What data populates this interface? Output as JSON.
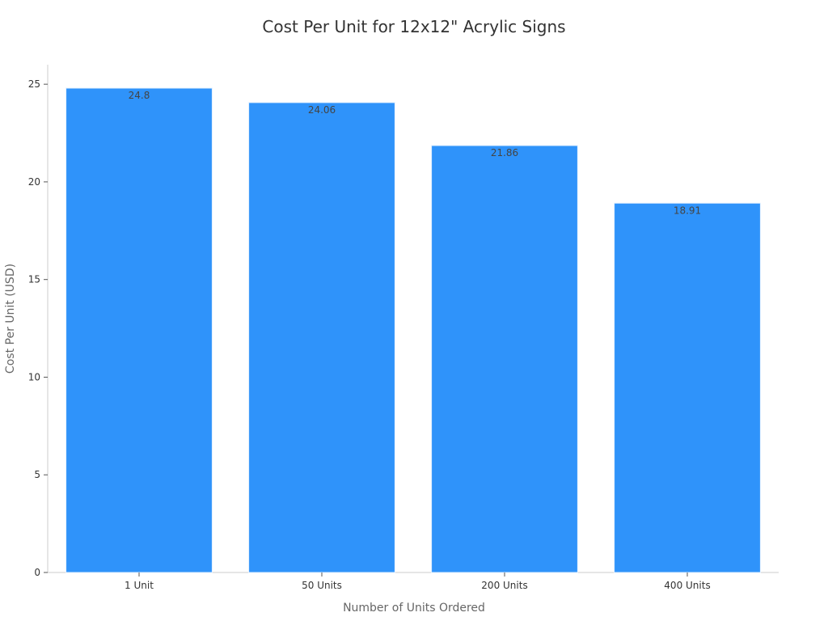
{
  "chart_data": {
    "type": "bar",
    "title": "Cost Per Unit for 12x12\" Acrylic Signs",
    "xlabel": "Number of Units Ordered",
    "ylabel": "Cost Per Unit (USD)",
    "categories": [
      "1 Unit",
      "50 Units",
      "200 Units",
      "400 Units"
    ],
    "values": [
      24.8,
      24.06,
      21.86,
      18.91
    ],
    "data_labels": [
      "24.8",
      "24.06",
      "21.86",
      "18.91"
    ],
    "ylim": [
      0,
      26
    ],
    "yticks": [
      0,
      5,
      10,
      15,
      20,
      25
    ],
    "grid": false,
    "legend": "none",
    "bar_color": "#2f93fa",
    "bar_edge_color": "#e3f0ff"
  }
}
